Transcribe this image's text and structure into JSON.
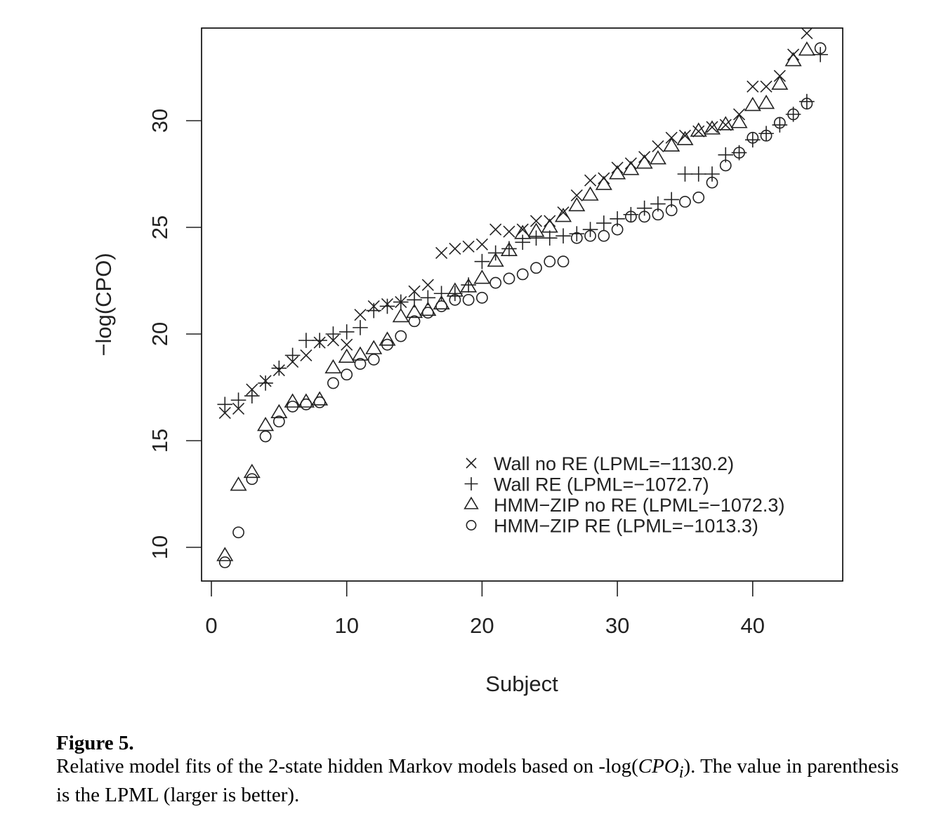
{
  "chart_data": {
    "type": "scatter",
    "title": "",
    "xlabel": "Subject",
    "ylabel": "−log(CPO)",
    "xlim": [
      0,
      45
    ],
    "ylim": [
      9,
      34.5
    ],
    "xticks": [
      "0",
      "10",
      "20",
      "30",
      "40"
    ],
    "yticks": [
      "10",
      "15",
      "20",
      "25",
      "30"
    ],
    "legend_position": "bottom-right",
    "grid": false,
    "series": [
      {
        "name": "Wall no RE (LPML=−1130.2)",
        "marker": "x",
        "x": [
          1,
          2,
          3,
          4,
          5,
          6,
          7,
          8,
          9,
          10,
          11,
          12,
          13,
          14,
          15,
          16,
          17,
          18,
          19,
          20,
          21,
          22,
          23,
          24,
          25,
          26,
          27,
          28,
          29,
          30,
          31,
          32,
          33,
          34,
          35,
          36,
          37,
          38,
          39,
          40,
          41,
          42,
          43,
          44
        ],
        "values": [
          16.3,
          16.5,
          17.4,
          17.8,
          18.3,
          18.7,
          19.0,
          19.6,
          19.7,
          19.5,
          20.9,
          21.3,
          21.4,
          21.5,
          22.0,
          22.3,
          23.8,
          24.0,
          24.1,
          24.2,
          24.9,
          24.8,
          24.9,
          25.3,
          25.3,
          25.7,
          26.5,
          27.2,
          27.3,
          27.8,
          28.0,
          28.3,
          28.8,
          29.2,
          29.3,
          29.5,
          29.7,
          29.8,
          30.3,
          31.6,
          31.6,
          32.1,
          33.1,
          34.1
        ]
      },
      {
        "name": "Wall RE (LPML=−1072.7)",
        "marker": "+",
        "x": [
          1,
          2,
          3,
          4,
          5,
          6,
          7,
          8,
          9,
          10,
          11,
          12,
          13,
          14,
          15,
          16,
          17,
          18,
          19,
          20,
          21,
          22,
          23,
          24,
          25,
          26,
          27,
          28,
          29,
          30,
          31,
          32,
          33,
          34,
          35,
          36,
          37,
          38,
          39,
          40,
          41,
          42,
          43,
          44,
          45
        ],
        "values": [
          16.7,
          16.9,
          17.1,
          17.7,
          18.4,
          19.0,
          19.7,
          19.7,
          20.0,
          20.1,
          20.3,
          21.1,
          21.3,
          21.5,
          21.6,
          21.7,
          21.9,
          21.9,
          22.3,
          23.4,
          23.8,
          24.0,
          24.3,
          24.5,
          24.5,
          24.6,
          24.7,
          24.9,
          25.2,
          25.4,
          25.6,
          25.9,
          26.1,
          26.3,
          27.5,
          27.5,
          27.5,
          28.4,
          28.5,
          29.1,
          29.4,
          29.8,
          30.3,
          30.9,
          33.1
        ]
      },
      {
        "name": "HMM−ZIP no RE (LPML=−1072.3)",
        "marker": "triangle",
        "x": [
          1,
          2,
          3,
          4,
          5,
          6,
          7,
          8,
          9,
          10,
          11,
          12,
          13,
          14,
          15,
          16,
          17,
          18,
          19,
          20,
          21,
          22,
          23,
          24,
          25,
          26,
          27,
          28,
          29,
          30,
          31,
          32,
          33,
          34,
          35,
          36,
          37,
          38,
          39,
          40,
          41,
          42,
          43,
          44
        ],
        "values": [
          9.6,
          12.9,
          13.5,
          15.7,
          16.3,
          16.8,
          16.8,
          16.9,
          18.4,
          18.9,
          19.0,
          19.3,
          19.7,
          20.8,
          21.0,
          21.1,
          21.4,
          22.0,
          22.2,
          22.6,
          23.4,
          23.9,
          24.7,
          24.8,
          25.0,
          25.5,
          26.0,
          26.5,
          27.0,
          27.5,
          27.7,
          28.0,
          28.2,
          28.8,
          29.1,
          29.5,
          29.6,
          29.8,
          29.9,
          30.7,
          30.8,
          31.7,
          32.8,
          33.3
        ]
      },
      {
        "name": "HMM−ZIP RE (LPML=−1013.3)",
        "marker": "circle",
        "x": [
          1,
          2,
          3,
          4,
          5,
          6,
          7,
          8,
          9,
          10,
          11,
          12,
          13,
          14,
          15,
          16,
          17,
          18,
          19,
          20,
          21,
          22,
          23,
          24,
          25,
          26,
          27,
          28,
          29,
          30,
          31,
          32,
          33,
          34,
          35,
          36,
          37,
          38,
          39,
          40,
          41,
          42,
          43,
          44,
          45
        ],
        "values": [
          9.3,
          10.7,
          13.2,
          15.2,
          15.9,
          16.6,
          16.7,
          16.8,
          17.7,
          18.1,
          18.6,
          18.8,
          19.5,
          19.9,
          20.6,
          21.0,
          21.3,
          21.6,
          21.6,
          21.7,
          22.4,
          22.6,
          22.8,
          23.1,
          23.4,
          23.4,
          24.5,
          24.6,
          24.6,
          24.9,
          25.5,
          25.5,
          25.6,
          25.8,
          26.2,
          26.4,
          27.1,
          27.9,
          28.5,
          29.2,
          29.3,
          29.9,
          30.3,
          30.8,
          33.4
        ]
      }
    ]
  },
  "caption": {
    "title": "Figure 5.",
    "text_before": "Relative model fits of the 2-state hidden Markov models based on -log(",
    "cpo": "CPO",
    "subscript": "i",
    "text_after": "). The value in parenthesis is the LPML (larger is better)."
  }
}
